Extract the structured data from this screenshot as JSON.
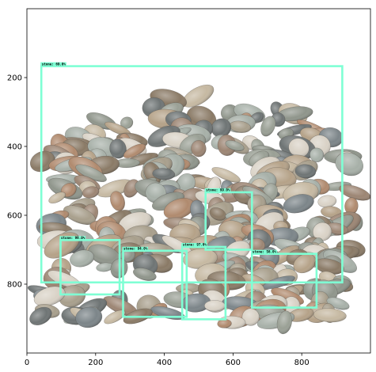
{
  "chart_data": {
    "type": "image-detections",
    "image_size": [
      1000,
      1000
    ],
    "xlim": [
      0,
      1000
    ],
    "ylim": [
      1000,
      0
    ],
    "x_ticks": [
      0,
      200,
      400,
      600,
      800
    ],
    "y_ticks": [
      200,
      400,
      600,
      800
    ],
    "box_color": "#7FFFD4",
    "detections": [
      {
        "label": "stone: 69.0%",
        "x0": 42,
        "y0": 167,
        "x1": 918,
        "y1": 795
      },
      {
        "label": "stone: 99.0%",
        "x0": 520,
        "y0": 533,
        "x1": 655,
        "y1": 700
      },
      {
        "label": "stone: 99.0%",
        "x0": 98,
        "y0": 672,
        "x1": 270,
        "y1": 830
      },
      {
        "label": "stone: 94.0%",
        "x0": 280,
        "y0": 703,
        "x1": 465,
        "y1": 895
      },
      {
        "label": "stone: 97.0%",
        "x0": 452,
        "y0": 692,
        "x1": 578,
        "y1": 902
      },
      {
        "label": "stone: 56.0%",
        "x0": 655,
        "y0": 712,
        "x1": 843,
        "y1": 868
      }
    ]
  },
  "photo": {
    "stone_palette": [
      "#8f958b",
      "#a89f8c",
      "#b08a6e",
      "#7c8589",
      "#c6b9a2",
      "#9aa095",
      "#6e7474",
      "#b5a288",
      "#d9d2c6",
      "#8a7a66",
      "#a7b0a8",
      "#9c8573"
    ]
  }
}
